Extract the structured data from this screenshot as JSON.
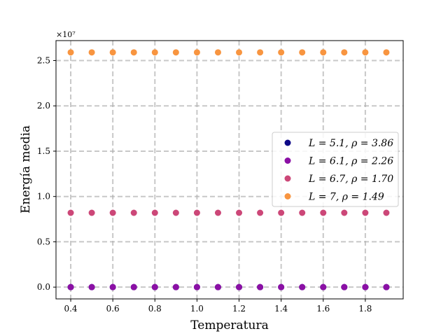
{
  "chart_data": {
    "type": "scatter",
    "xlabel": "Temperatura",
    "ylabel": "Energía media",
    "y_multiplier_label": "×10⁷",
    "xlim": [
      0.33,
      1.98
    ],
    "ylim": [
      -0.13,
      2.72
    ],
    "xticks": [
      0.4,
      0.6,
      0.8,
      1.0,
      1.2,
      1.4,
      1.6,
      1.8
    ],
    "xtick_labels": [
      "0.4",
      "0.6",
      "0.8",
      "1.0",
      "1.2",
      "1.4",
      "1.6",
      "1.8"
    ],
    "yticks": [
      0.0,
      0.5,
      1.0,
      1.5,
      2.0,
      2.5
    ],
    "ytick_labels": [
      "0.0",
      "0.5",
      "1.0",
      "1.5",
      "2.0",
      "2.5"
    ],
    "grid": true,
    "legend_position": "center-right",
    "x": [
      0.4,
      0.5,
      0.6,
      0.7,
      0.8,
      0.9,
      1.0,
      1.1,
      1.2,
      1.3,
      1.4,
      1.5,
      1.6,
      1.7,
      1.8,
      1.9
    ],
    "series": [
      {
        "name": "L = 5.1, ρ = 3.86",
        "color": "#0d0887",
        "values": [
          0,
          0,
          0,
          0,
          0,
          0,
          0,
          0,
          0,
          0,
          0,
          0,
          0,
          0,
          0,
          0
        ]
      },
      {
        "name": "L = 6.1, ρ = 2.26",
        "color": "#8b10a5",
        "values": [
          0,
          0,
          0,
          0,
          0,
          0,
          0,
          0,
          0,
          0,
          0,
          0,
          0,
          0,
          0,
          0
        ]
      },
      {
        "name": "L = 6.7, ρ = 1.70",
        "color": "#cc4778",
        "values": [
          0.82,
          0.82,
          0.82,
          0.82,
          0.82,
          0.82,
          0.82,
          0.82,
          0.82,
          0.82,
          0.82,
          0.82,
          0.82,
          0.82,
          0.82,
          0.82
        ]
      },
      {
        "name": "L = 7, ρ = 1.49",
        "color": "#f89540",
        "values": [
          2.59,
          2.59,
          2.59,
          2.59,
          2.59,
          2.59,
          2.59,
          2.59,
          2.59,
          2.59,
          2.59,
          2.59,
          2.59,
          2.59,
          2.59,
          2.59
        ]
      }
    ]
  }
}
